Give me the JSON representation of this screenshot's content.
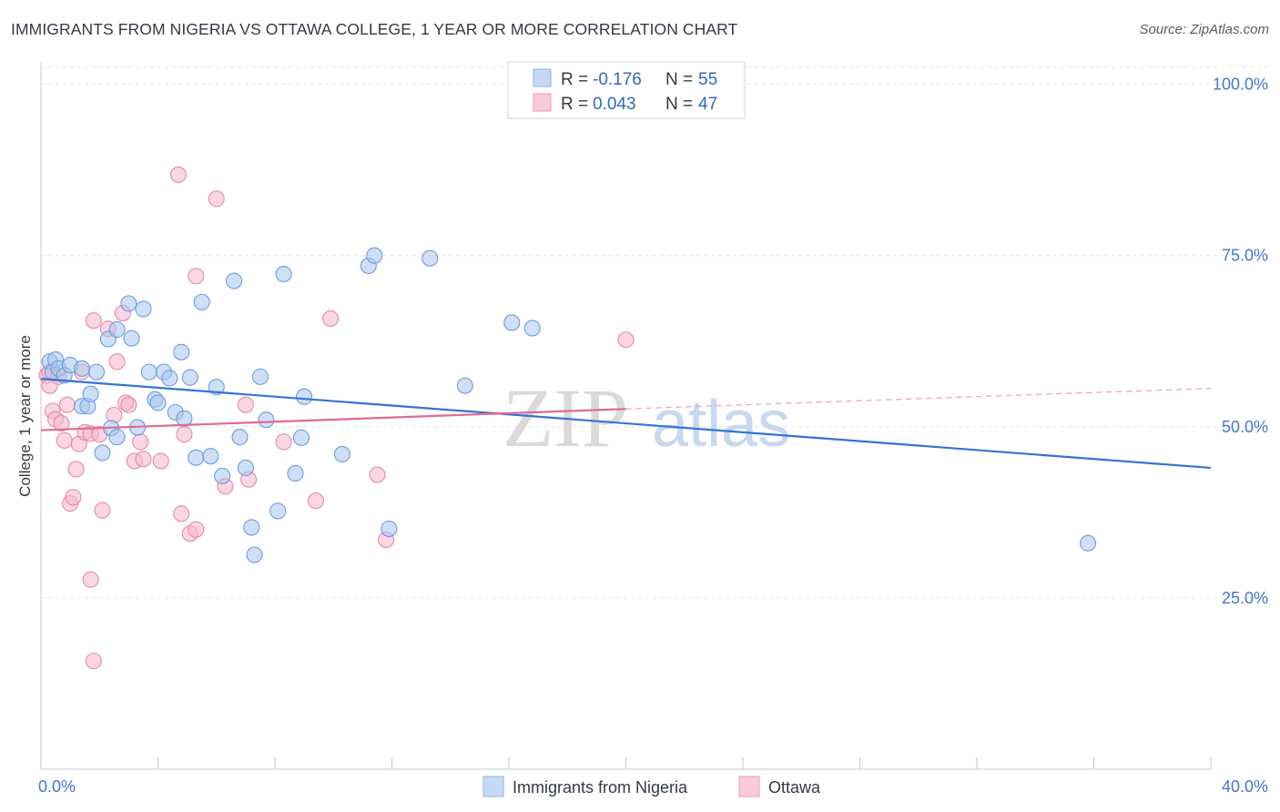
{
  "header": {
    "title": "IMMIGRANTS FROM NIGERIA VS OTTAWA COLLEGE, 1 YEAR OR MORE CORRELATION CHART",
    "source": "Source: ZipAtlas.com"
  },
  "watermark": {
    "zip": "ZIP",
    "atlas": "atlas"
  },
  "legend": {
    "rows": [
      {
        "r_label": "R = ",
        "r_value": "-0.176",
        "n_label": "N = ",
        "n_value": "55"
      },
      {
        "r_label": "R = ",
        "r_value": "0.043",
        "n_label": "N = ",
        "n_value": "47"
      }
    ]
  },
  "chart_data": {
    "type": "scatter",
    "title": "IMMIGRANTS FROM NIGERIA VS OTTAWA COLLEGE, 1 YEAR OR MORE CORRELATION CHART",
    "xlabel": "",
    "ylabel": "College, 1 year or more",
    "xlim": [
      0,
      40
    ],
    "ylim": [
      0,
      105
    ],
    "x_tick_labels": [
      "0.0%",
      "40.0%"
    ],
    "y_ticks": [
      25,
      50,
      75,
      100
    ],
    "y_tick_labels": [
      "25.0%",
      "50.0%",
      "75.0%",
      "100.0%"
    ],
    "grid": true,
    "colors": {
      "nigeria": "#a7c6ef",
      "nigeria_line": "#3374d4",
      "ottawa": "#f6b6cb",
      "ottawa_line": "#e06a96"
    },
    "series": [
      {
        "name": "Immigrants from Nigeria",
        "r": -0.176,
        "n": 55,
        "trend": {
          "x": [
            0,
            40
          ],
          "y": [
            57.0,
            44.0
          ]
        },
        "points": [
          [
            0.3,
            59.5
          ],
          [
            0.4,
            58.0
          ],
          [
            0.5,
            59.8
          ],
          [
            0.6,
            58.5
          ],
          [
            0.8,
            57.5
          ],
          [
            1.0,
            59.0
          ],
          [
            1.4,
            58.5
          ],
          [
            1.9,
            58.0
          ],
          [
            1.4,
            53.0
          ],
          [
            1.6,
            53.0
          ],
          [
            1.7,
            54.8
          ],
          [
            2.1,
            46.2
          ],
          [
            2.4,
            49.8
          ],
          [
            2.6,
            48.5
          ],
          [
            2.3,
            62.8
          ],
          [
            2.6,
            64.2
          ],
          [
            3.0,
            68.0
          ],
          [
            3.1,
            62.9
          ],
          [
            3.3,
            49.9
          ],
          [
            3.5,
            67.2
          ],
          [
            3.7,
            58.0
          ],
          [
            3.9,
            54.0
          ],
          [
            4.0,
            53.5
          ],
          [
            4.2,
            58.0
          ],
          [
            4.4,
            57.1
          ],
          [
            4.6,
            52.1
          ],
          [
            4.8,
            60.9
          ],
          [
            4.9,
            51.2
          ],
          [
            5.1,
            57.2
          ],
          [
            5.3,
            45.5
          ],
          [
            5.5,
            68.2
          ],
          [
            5.8,
            45.7
          ],
          [
            6.0,
            55.8
          ],
          [
            6.2,
            42.8
          ],
          [
            6.6,
            71.3
          ],
          [
            6.8,
            48.5
          ],
          [
            7.0,
            44.0
          ],
          [
            7.2,
            35.3
          ],
          [
            7.3,
            31.3
          ],
          [
            7.5,
            57.3
          ],
          [
            7.7,
            51.0
          ],
          [
            8.1,
            37.7
          ],
          [
            8.3,
            72.3
          ],
          [
            8.7,
            43.2
          ],
          [
            8.9,
            48.4
          ],
          [
            9.0,
            54.4
          ],
          [
            10.3,
            46.0
          ],
          [
            11.2,
            73.5
          ],
          [
            11.4,
            75.0
          ],
          [
            11.9,
            35.1
          ],
          [
            13.3,
            74.6
          ],
          [
            14.5,
            56.0
          ],
          [
            16.1,
            65.2
          ],
          [
            16.8,
            64.4
          ],
          [
            35.8,
            33.0
          ]
        ]
      },
      {
        "name": "Ottawa",
        "r": 0.043,
        "n": 47,
        "trend": {
          "x": [
            0,
            20
          ],
          "y": [
            49.5,
            52.6
          ]
        },
        "trend_dashed": {
          "x": [
            20,
            40
          ],
          "y": [
            52.6,
            55.6
          ]
        },
        "points": [
          [
            0.2,
            57.5
          ],
          [
            0.3,
            58.0
          ],
          [
            0.3,
            56.0
          ],
          [
            0.4,
            52.3
          ],
          [
            0.5,
            51.1
          ],
          [
            0.6,
            57.3
          ],
          [
            0.7,
            50.5
          ],
          [
            0.8,
            48.0
          ],
          [
            0.9,
            53.2
          ],
          [
            1.0,
            38.8
          ],
          [
            1.1,
            39.7
          ],
          [
            1.2,
            43.8
          ],
          [
            1.3,
            47.5
          ],
          [
            1.4,
            58.0
          ],
          [
            1.5,
            49.2
          ],
          [
            1.7,
            49.0
          ],
          [
            1.7,
            27.7
          ],
          [
            1.8,
            15.8
          ],
          [
            1.8,
            65.5
          ],
          [
            2.0,
            48.9
          ],
          [
            2.1,
            37.8
          ],
          [
            2.3,
            64.3
          ],
          [
            2.5,
            51.7
          ],
          [
            2.6,
            59.5
          ],
          [
            2.8,
            66.6
          ],
          [
            2.9,
            53.5
          ],
          [
            3.0,
            53.2
          ],
          [
            3.2,
            45.0
          ],
          [
            3.4,
            47.8
          ],
          [
            3.5,
            45.3
          ],
          [
            4.1,
            45.0
          ],
          [
            4.7,
            86.8
          ],
          [
            4.8,
            37.3
          ],
          [
            4.9,
            48.9
          ],
          [
            5.1,
            34.4
          ],
          [
            5.3,
            35.0
          ],
          [
            5.3,
            72.0
          ],
          [
            6.0,
            83.3
          ],
          [
            6.3,
            41.3
          ],
          [
            7.0,
            53.2
          ],
          [
            7.1,
            42.3
          ],
          [
            8.3,
            47.8
          ],
          [
            9.4,
            39.2
          ],
          [
            9.9,
            65.8
          ],
          [
            11.5,
            43.0
          ],
          [
            11.8,
            33.5
          ],
          [
            20.0,
            62.7
          ]
        ]
      }
    ]
  }
}
